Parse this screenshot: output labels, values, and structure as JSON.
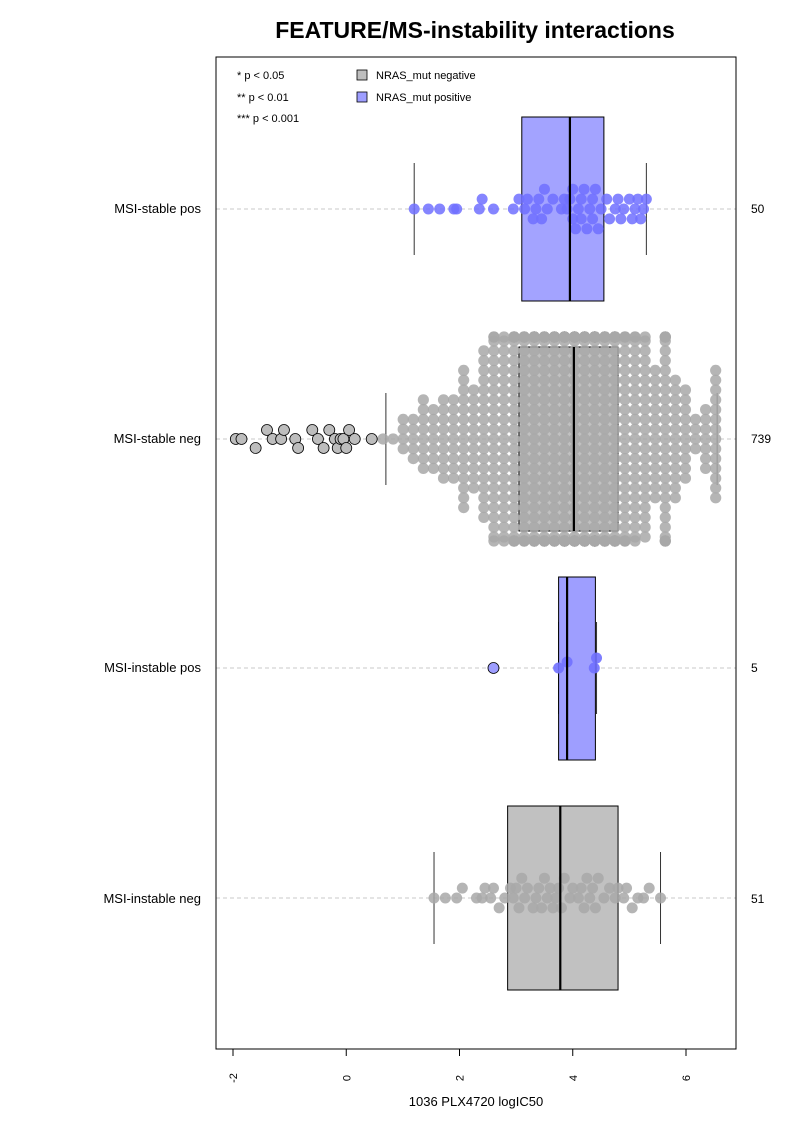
{
  "chart_data": {
    "type": "box",
    "title": "FEATURE/MS-instability interactions",
    "xlabel": "1036 PLX4720 logIC50",
    "ylabel": "",
    "xlim": [
      -2.3,
      6.9
    ],
    "xticks": [
      "-2",
      "0",
      "2",
      "4",
      "6"
    ],
    "significance_legend": [
      "* p < 0.05",
      "** p < 0.01",
      "*** p < 0.001"
    ],
    "legend": {
      "position": "top",
      "entries": [
        {
          "name": "NRAS_mut negative",
          "color": "#bebebe"
        },
        {
          "name": "NRAS_mut positive",
          "color": "#9e9eff"
        }
      ]
    },
    "groups": [
      {
        "label": "MSI-stable pos",
        "n": "50",
        "series": "NRAS_mut positive",
        "whisker_low": 1.2,
        "q1": 3.1,
        "median": 3.95,
        "q3": 4.55,
        "whisker_high": 5.3,
        "points_color": "#7070ff",
        "points": [
          1.2,
          1.45,
          1.65,
          1.9,
          1.95,
          2.35,
          2.4,
          2.6,
          2.95,
          3.05,
          3.15,
          3.2,
          3.3,
          3.35,
          3.4,
          3.45,
          3.5,
          3.55,
          3.65,
          3.8,
          3.85,
          3.9,
          3.95,
          4.0,
          4.0,
          4.05,
          4.1,
          4.15,
          4.15,
          4.2,
          4.25,
          4.3,
          4.35,
          4.35,
          4.4,
          4.45,
          4.5,
          4.6,
          4.65,
          4.75,
          4.8,
          4.85,
          4.9,
          5.0,
          5.05,
          5.1,
          5.15,
          5.2,
          5.25,
          5.3
        ]
      },
      {
        "label": "MSI-stable neg",
        "n": "739",
        "series": "NRAS_mut negative",
        "whisker_low": 0.7,
        "q1": 3.05,
        "median": 4.02,
        "q3": 4.8,
        "whisker_high": 6.55,
        "points_color": "#a8a8a8",
        "outliers": [
          -1.95,
          -1.85,
          -1.6,
          -1.4,
          -1.3,
          -1.15,
          -1.1,
          -0.9,
          -0.85,
          -0.6,
          -0.5,
          -0.4,
          -0.3,
          -0.2,
          -0.15,
          -0.1,
          -0.05,
          0.0,
          0.05,
          0.15,
          0.45
        ],
        "points_count": 718
      },
      {
        "label": "MSI-instable pos",
        "n": "5",
        "series": "NRAS_mut positive",
        "whisker_low": 3.75,
        "q1": 3.75,
        "median": 3.9,
        "q3": 4.4,
        "whisker_high": 4.42,
        "points_color": "#7070ff",
        "outliers": [
          2.6
        ],
        "points": [
          3.75,
          3.9,
          4.38,
          4.42
        ]
      },
      {
        "label": "MSI-instable neg",
        "n": "51",
        "series": "NRAS_mut negative",
        "whisker_low": 1.55,
        "q1": 2.85,
        "median": 3.78,
        "q3": 4.8,
        "whisker_high": 5.55,
        "points_color": "#a8a8a8",
        "points": [
          1.55,
          1.75,
          1.95,
          2.05,
          2.3,
          2.4,
          2.45,
          2.55,
          2.6,
          2.7,
          2.8,
          2.9,
          2.95,
          3.0,
          3.05,
          3.1,
          3.15,
          3.2,
          3.3,
          3.35,
          3.4,
          3.45,
          3.5,
          3.55,
          3.6,
          3.65,
          3.7,
          3.75,
          3.8,
          3.85,
          3.95,
          4.0,
          4.1,
          4.15,
          4.2,
          4.25,
          4.3,
          4.35,
          4.4,
          4.45,
          4.55,
          4.65,
          4.75,
          4.8,
          4.9,
          4.95,
          5.05,
          5.15,
          5.25,
          5.35,
          5.55
        ]
      }
    ]
  }
}
